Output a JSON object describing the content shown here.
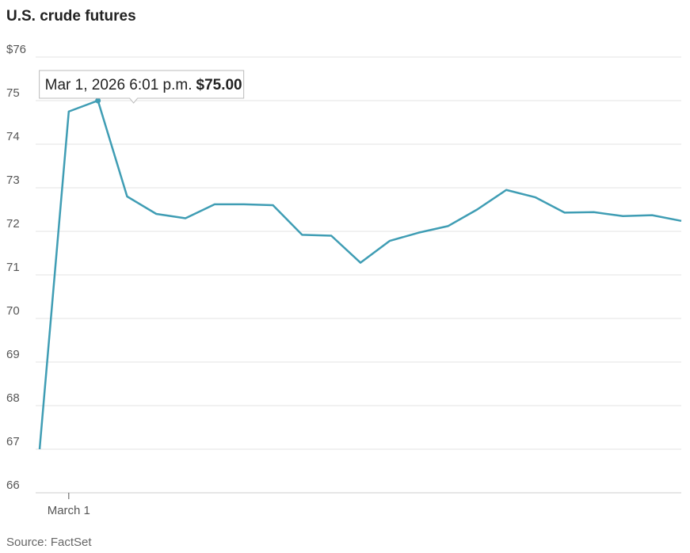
{
  "chart_data": {
    "type": "line",
    "title": "U.S. crude futures",
    "source": "Source: FactSet",
    "categories": [
      null,
      "March 1",
      null,
      null,
      null,
      null,
      null,
      null,
      null,
      null,
      null,
      null,
      null,
      null,
      null,
      null,
      null,
      null,
      null,
      null,
      null,
      null,
      null
    ],
    "values": [
      67.0,
      74.75,
      75.0,
      72.8,
      72.4,
      72.3,
      72.62,
      72.62,
      72.6,
      71.92,
      71.9,
      71.28,
      71.78,
      71.97,
      72.12,
      72.5,
      72.95,
      72.78,
      72.43,
      72.44,
      72.35,
      72.37,
      72.24
    ],
    "value_labels": [
      null,
      null,
      "$75.00",
      null,
      null,
      null,
      null,
      null,
      null,
      null,
      null,
      null,
      null,
      null,
      null,
      null,
      null,
      null,
      null,
      null,
      null,
      null,
      null
    ],
    "tooltip": "Mar 1, 2026 6:01 p.m.",
    "color": "#3f9db4",
    "ylim": [
      66,
      76
    ],
    "yticks": [
      66,
      67,
      68,
      69,
      70,
      71,
      72,
      73,
      74,
      75,
      {
        "value": 76,
        "label": "$76"
      }
    ],
    "grid": true
  }
}
